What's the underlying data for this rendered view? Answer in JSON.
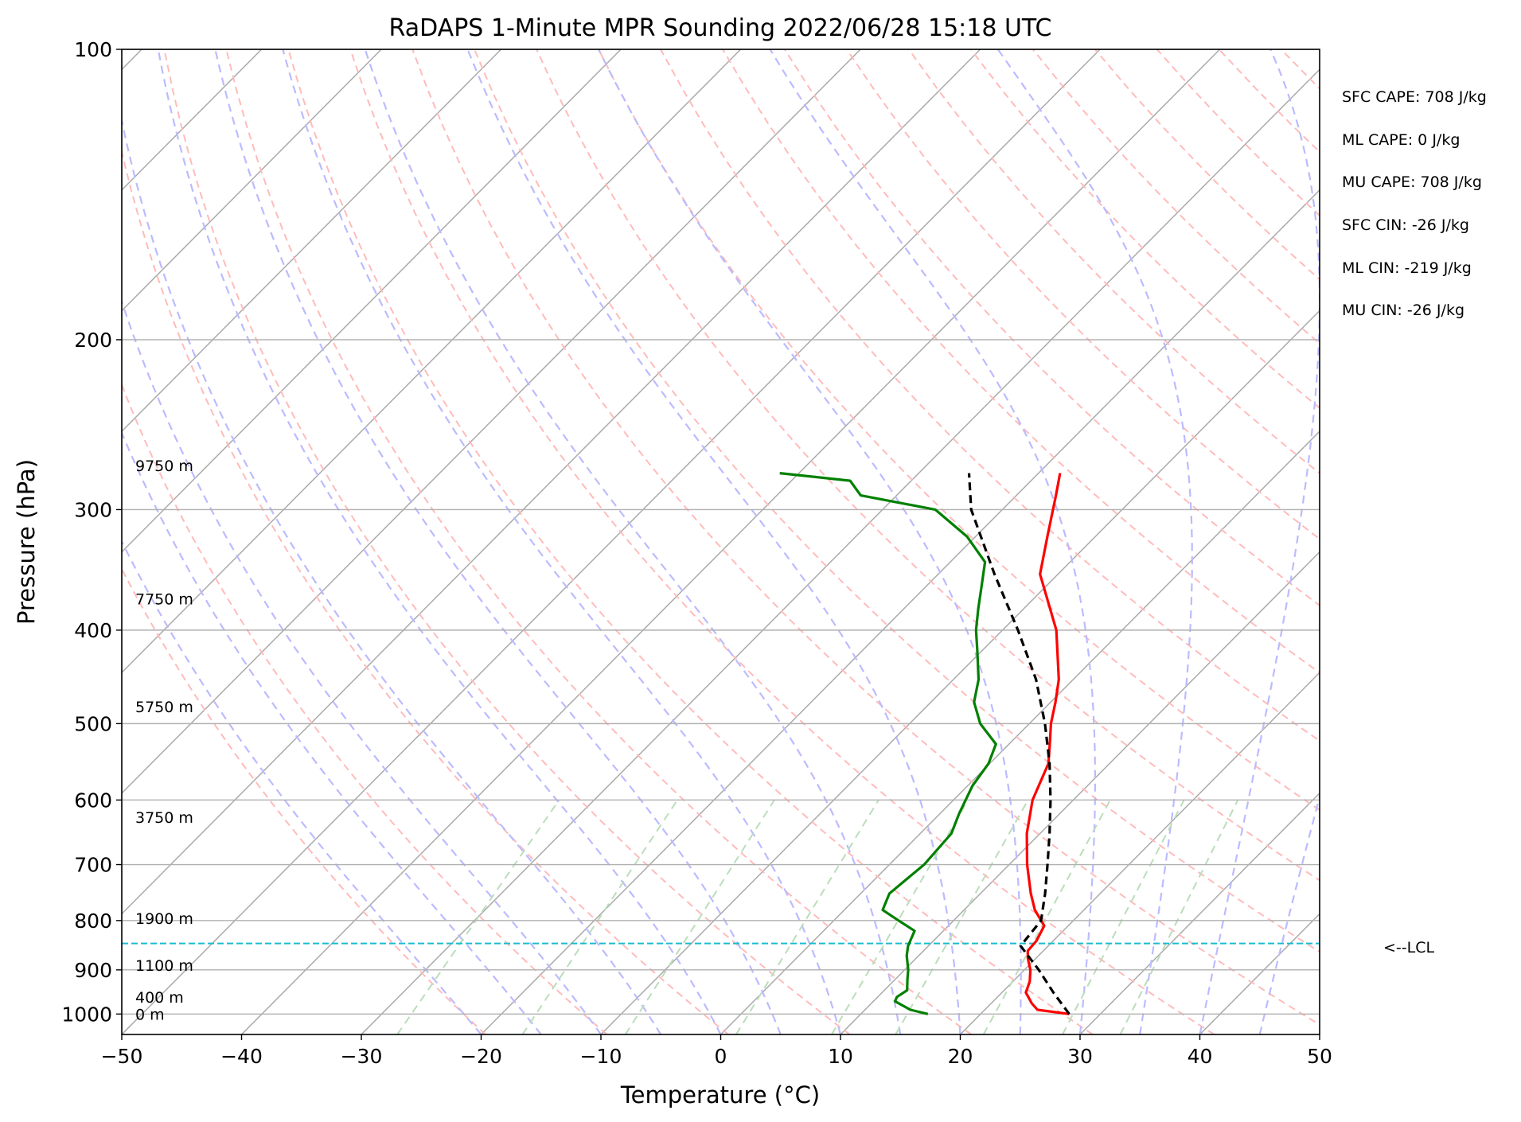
{
  "chart_data": {
    "type": "line",
    "title": "RaDAPS 1-Minute MPR Sounding 2022/06/28 15:18 UTC",
    "xlabel": "Temperature (°C)",
    "ylabel": "Pressure (hPa)",
    "xlim": [
      -50,
      50
    ],
    "ylim": [
      1050,
      100
    ],
    "y_scale": "log",
    "skew": "skew-T log-p",
    "x_ticks": [
      "−50",
      "−40",
      "−30",
      "−20",
      "−10",
      "0",
      "10",
      "20",
      "30",
      "40",
      "50"
    ],
    "y_ticks": [
      {
        "p": 100,
        "label": "100"
      },
      {
        "p": 200,
        "label": "200"
      },
      {
        "p": 300,
        "label": "300"
      },
      {
        "p": 400,
        "label": "400"
      },
      {
        "p": 500,
        "label": "500"
      },
      {
        "p": 600,
        "label": "600"
      },
      {
        "p": 700,
        "label": "700"
      },
      {
        "p": 800,
        "label": "800"
      },
      {
        "p": 900,
        "label": "900"
      },
      {
        "p": 1000,
        "label": "1000"
      }
    ],
    "series": [
      {
        "role": "temperature",
        "color": "#ff0000",
        "style": "solid",
        "points": [
          [
            1000,
            27.4
          ],
          [
            990,
            24.4
          ],
          [
            975,
            23.4
          ],
          [
            950,
            22.0
          ],
          [
            925,
            21.4
          ],
          [
            900,
            20.5
          ],
          [
            875,
            19.3
          ],
          [
            860,
            18.7
          ],
          [
            840,
            18.6
          ],
          [
            810,
            18.0
          ],
          [
            780,
            15.9
          ],
          [
            750,
            14.2
          ],
          [
            700,
            11.5
          ],
          [
            650,
            8.9
          ],
          [
            600,
            6.6
          ],
          [
            550,
            4.9
          ],
          [
            525,
            3.4
          ],
          [
            500,
            1.8
          ],
          [
            475,
            0.4
          ],
          [
            450,
            -1.2
          ],
          [
            400,
            -5.5
          ],
          [
            350,
            -11.5
          ],
          [
            320,
            -14.0
          ],
          [
            290,
            -16.7
          ],
          [
            275,
            -18.2
          ]
        ]
      },
      {
        "role": "dewpoint",
        "color": "#008000",
        "style": "solid",
        "points": [
          [
            1000,
            15.6
          ],
          [
            990,
            13.8
          ],
          [
            970,
            11.8
          ],
          [
            960,
            11.6
          ],
          [
            945,
            11.9
          ],
          [
            920,
            11.0
          ],
          [
            900,
            10.3
          ],
          [
            870,
            9.0
          ],
          [
            850,
            8.3
          ],
          [
            820,
            7.6
          ],
          [
            800,
            5.4
          ],
          [
            780,
            3.2
          ],
          [
            750,
            2.4
          ],
          [
            700,
            2.9
          ],
          [
            650,
            2.6
          ],
          [
            620,
            1.6
          ],
          [
            580,
            0.4
          ],
          [
            550,
            -0.1
          ],
          [
            525,
            -1.1
          ],
          [
            500,
            -4.1
          ],
          [
            475,
            -6.4
          ],
          [
            450,
            -7.9
          ],
          [
            420,
            -10.4
          ],
          [
            400,
            -12.2
          ],
          [
            380,
            -13.8
          ],
          [
            360,
            -15.4
          ],
          [
            340,
            -17.1
          ],
          [
            320,
            -20.7
          ],
          [
            300,
            -25.6
          ],
          [
            290,
            -33.0
          ],
          [
            280,
            -35.1
          ],
          [
            275,
            -41.6
          ]
        ]
      },
      {
        "role": "parcel",
        "color": "#000000",
        "style": "dashed",
        "points": [
          [
            1000,
            27.4
          ],
          [
            950,
            24.3
          ],
          [
            900,
            21.2
          ],
          [
            850,
            17.7
          ],
          [
            800,
            17.3
          ],
          [
            750,
            15.4
          ],
          [
            700,
            13.2
          ],
          [
            650,
            10.8
          ],
          [
            600,
            8.1
          ],
          [
            550,
            5.0
          ],
          [
            500,
            1.3
          ],
          [
            450,
            -3.1
          ],
          [
            400,
            -8.7
          ],
          [
            350,
            -15.3
          ],
          [
            300,
            -22.6
          ],
          [
            275,
            -25.8
          ]
        ]
      }
    ],
    "lcl": {
      "p": 845,
      "color": "#17becf",
      "label": "<--LCL"
    },
    "height_labels": [
      {
        "p": 270,
        "label": "9750 m"
      },
      {
        "p": 371,
        "label": "7750 m"
      },
      {
        "p": 480,
        "label": "5750 m"
      },
      {
        "p": 625,
        "label": "3750 m"
      },
      {
        "p": 796,
        "label": "1900 m"
      },
      {
        "p": 890,
        "label": "1100 m"
      },
      {
        "p": 960,
        "label": "400 m"
      },
      {
        "p": 1000,
        "label": "0 m"
      }
    ],
    "stats": [
      "SFC CAPE: 708 J/kg",
      "ML CAPE: 0 J/kg",
      "MU CAPE: 708 J/kg",
      "SFC CIN: -26 J/kg",
      "ML CIN: -219 J/kg",
      "MU CIN: -26 J/kg"
    ],
    "reference_lines": {
      "isotherms": {
        "color": "#aaaaaa",
        "style": "solid"
      },
      "dry_adiabats": {
        "color": "#ffbbbb",
        "style": "dashed"
      },
      "moist_adiabats": {
        "color": "#bbbbff",
        "style": "dashed"
      },
      "mixing_ratio_lines": {
        "color": "#bbddbb",
        "style": "dashed"
      }
    },
    "grid": true
  }
}
